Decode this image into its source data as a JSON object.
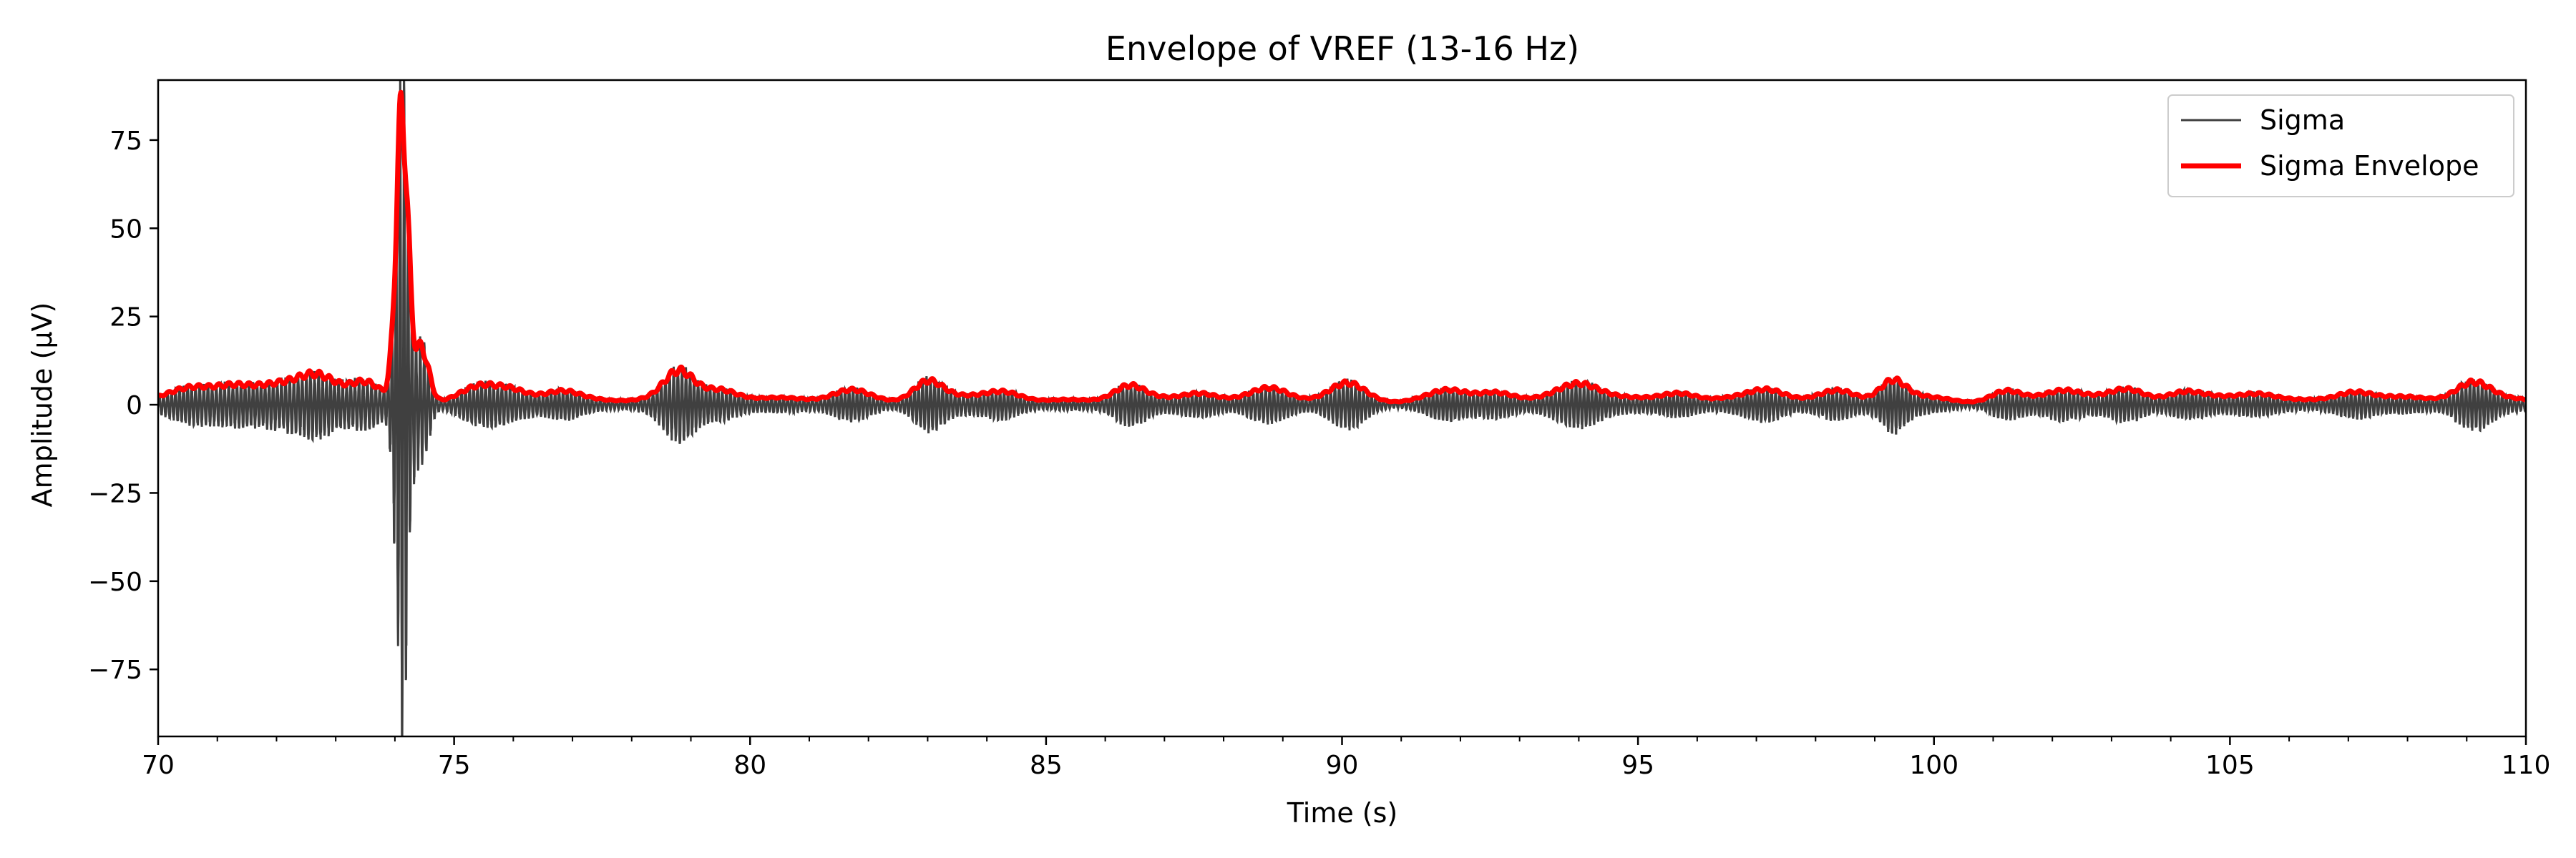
{
  "chart_data": {
    "type": "line",
    "title": "Envelope of VREF (13-16 Hz)",
    "xlabel": "Time (s)",
    "ylabel": "Amplitude (µV)",
    "xlim": [
      70,
      110
    ],
    "ylim": [
      -94,
      92
    ],
    "x_ticks": [
      70,
      75,
      80,
      85,
      90,
      95,
      100,
      105,
      110
    ],
    "x_tick_labels": [
      "70",
      "75",
      "80",
      "85",
      "90",
      "95",
      "100",
      "105",
      "110"
    ],
    "x_minor_step": 1,
    "y_ticks": [
      75,
      50,
      25,
      0,
      -25,
      -50,
      -75
    ],
    "y_tick_labels": [
      "75",
      "50",
      "25",
      "0",
      "−25",
      "−50",
      "−75"
    ],
    "grid": false,
    "legend_position": "top-right",
    "series": [
      {
        "name": "Sigma",
        "color": "#404040",
        "style": "oscillation",
        "frequency_hz": 14.5,
        "baseline_amplitude": 2.0,
        "bursts": [
          {
            "t": 70.6,
            "peak": 3,
            "width": 0.4
          },
          {
            "t": 71.3,
            "peak": 4,
            "width": 0.3
          },
          {
            "t": 71.9,
            "peak": 4,
            "width": 0.35
          },
          {
            "t": 72.7,
            "peak": 7,
            "width": 0.35
          },
          {
            "t": 73.5,
            "peak": 5,
            "width": 0.25
          },
          {
            "t": 74.12,
            "peak": 86,
            "width": 0.1
          },
          {
            "t": 74.45,
            "peak": 16,
            "width": 0.12
          },
          {
            "t": 75.4,
            "peak": 3,
            "width": 0.3
          },
          {
            "t": 76.0,
            "peak": 3,
            "width": 0.3
          },
          {
            "t": 76.8,
            "peak": 3,
            "width": 0.3
          },
          {
            "t": 78.8,
            "peak": 8,
            "width": 0.25
          },
          {
            "t": 79.5,
            "peak": 4,
            "width": 0.3
          },
          {
            "t": 81.7,
            "peak": 3,
            "width": 0.3
          },
          {
            "t": 83.0,
            "peak": 6,
            "width": 0.25
          },
          {
            "t": 84.3,
            "peak": 3,
            "width": 0.3
          },
          {
            "t": 86.4,
            "peak": 4,
            "width": 0.25
          },
          {
            "t": 87.6,
            "peak": 3,
            "width": 0.3
          },
          {
            "t": 88.8,
            "peak": 3,
            "width": 0.3
          },
          {
            "t": 90.1,
            "peak": 5,
            "width": 0.3
          },
          {
            "t": 91.8,
            "peak": 2,
            "width": 0.3
          },
          {
            "t": 92.6,
            "peak": 3,
            "width": 0.3
          },
          {
            "t": 94.0,
            "peak": 5,
            "width": 0.35
          },
          {
            "t": 95.7,
            "peak": 3,
            "width": 0.3
          },
          {
            "t": 97.2,
            "peak": 3,
            "width": 0.3
          },
          {
            "t": 98.4,
            "peak": 3,
            "width": 0.3
          },
          {
            "t": 99.3,
            "peak": 6,
            "width": 0.22
          },
          {
            "t": 101.2,
            "peak": 3,
            "width": 0.25
          },
          {
            "t": 102.2,
            "peak": 3,
            "width": 0.3
          },
          {
            "t": 103.3,
            "peak": 3,
            "width": 0.3
          },
          {
            "t": 104.2,
            "peak": 3,
            "width": 0.3
          },
          {
            "t": 105.5,
            "peak": 2,
            "width": 0.3
          },
          {
            "t": 107.1,
            "peak": 3,
            "width": 0.3
          },
          {
            "t": 109.1,
            "peak": 6,
            "width": 0.3
          }
        ]
      },
      {
        "name": "Sigma Envelope",
        "color": "#ff0000",
        "style": "envelope",
        "derived_from": "Sigma"
      }
    ]
  }
}
